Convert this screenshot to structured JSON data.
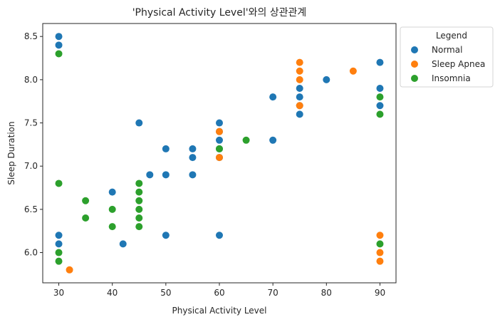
{
  "chart_data": {
    "type": "scatter",
    "title": "'Physical Activity Level'와의 상관관계",
    "xlabel": "Physical Activity Level",
    "ylabel": "Sleep Duration",
    "xlim": [
      27,
      93
    ],
    "ylim": [
      5.65,
      8.65
    ],
    "xticks": [
      30,
      40,
      50,
      60,
      70,
      80,
      90
    ],
    "yticks": [
      6.0,
      6.5,
      7.0,
      7.5,
      8.0,
      8.5
    ],
    "grid": false,
    "legend": {
      "title": "Legend",
      "placement": "outside-top-right"
    },
    "series": [
      {
        "name": "Normal",
        "color": "#1f77b4",
        "points": [
          [
            30,
            8.5
          ],
          [
            30,
            8.4
          ],
          [
            30,
            6.2
          ],
          [
            30,
            6.1
          ],
          [
            40,
            6.7
          ],
          [
            42,
            6.1
          ],
          [
            45,
            7.5
          ],
          [
            47,
            6.9
          ],
          [
            50,
            7.2
          ],
          [
            50,
            6.9
          ],
          [
            50,
            6.2
          ],
          [
            55,
            7.2
          ],
          [
            55,
            7.1
          ],
          [
            55,
            6.9
          ],
          [
            60,
            7.5
          ],
          [
            60,
            7.4
          ],
          [
            60,
            7.3
          ],
          [
            60,
            7.2
          ],
          [
            60,
            7.1
          ],
          [
            60,
            6.2
          ],
          [
            70,
            7.8
          ],
          [
            70,
            7.3
          ],
          [
            75,
            7.9
          ],
          [
            75,
            7.8
          ],
          [
            75,
            7.7
          ],
          [
            75,
            7.6
          ],
          [
            80,
            8.0
          ],
          [
            90,
            8.2
          ],
          [
            90,
            7.9
          ],
          [
            90,
            7.7
          ]
        ]
      },
      {
        "name": "Sleep Apnea",
        "color": "#ff7f0e",
        "points": [
          [
            32,
            5.8
          ],
          [
            60,
            7.4
          ],
          [
            60,
            7.1
          ],
          [
            75,
            8.2
          ],
          [
            75,
            8.1
          ],
          [
            75,
            8.0
          ],
          [
            75,
            7.7
          ],
          [
            85,
            8.1
          ],
          [
            90,
            6.2
          ],
          [
            90,
            6.0
          ],
          [
            90,
            5.9
          ]
        ]
      },
      {
        "name": "Insomnia",
        "color": "#2ca02c",
        "points": [
          [
            30,
            8.3
          ],
          [
            30,
            6.8
          ],
          [
            30,
            6.0
          ],
          [
            30,
            5.9
          ],
          [
            35,
            6.6
          ],
          [
            35,
            6.4
          ],
          [
            40,
            6.5
          ],
          [
            40,
            6.3
          ],
          [
            45,
            6.8
          ],
          [
            45,
            6.7
          ],
          [
            45,
            6.6
          ],
          [
            45,
            6.5
          ],
          [
            45,
            6.4
          ],
          [
            45,
            6.3
          ],
          [
            60,
            7.2
          ],
          [
            65,
            7.3
          ],
          [
            90,
            7.8
          ],
          [
            90,
            7.6
          ],
          [
            90,
            6.1
          ]
        ]
      }
    ]
  }
}
